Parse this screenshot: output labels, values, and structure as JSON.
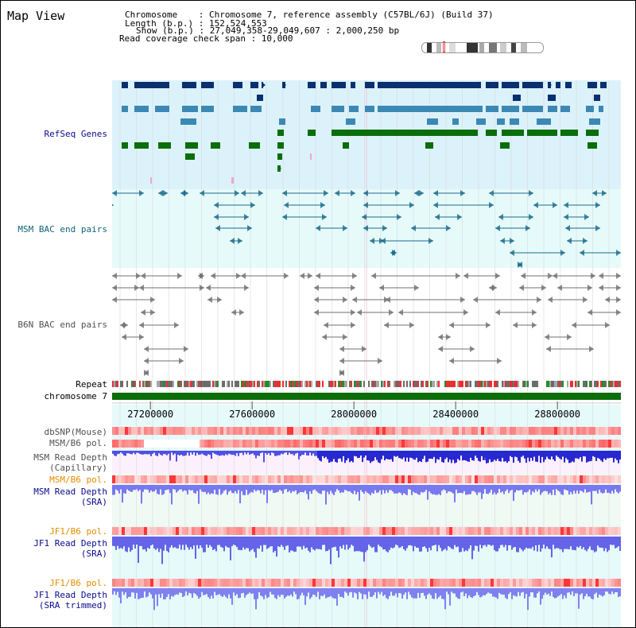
{
  "title": "Map View",
  "info": {
    "chromosome": "Chromosome    : Chromosome 7, reference assembly (C57BL/6J) (Build 37)",
    "length": "Length (b.p.) : 152,524,553",
    "show": "Show (b.p.) : 27,049,358-29,049,607 : 2,000,250 bp",
    "coverage": "Read coverage check span : 10,000"
  },
  "tracks": {
    "refseq": "RefSeq Genes",
    "msm_bac": "MSM BAC end pairs",
    "b6n_bac": "B6N BAC end pairs",
    "repeat": "Repeat",
    "chromosome": "chromosome 7",
    "dbsnp": "dbSNP(Mouse)",
    "msm_b6_pol_1": "MSM/B6 pol.",
    "msm_depth_cap_1": "MSM Read Depth",
    "msm_depth_cap_2": "(Capillary)",
    "msm_b6_pol_2": "MSM/B6 pol.",
    "msm_depth_sra_1": "MSM Read Depth",
    "msm_depth_sra_2": "(SRA)",
    "jf1_b6_pol_1": "JF1/B6 pol.",
    "jf1_depth_sra_1": "JF1 Read Depth",
    "jf1_depth_sra_2": "(SRA)",
    "jf1_b6_pol_2": "JF1/B6 pol.",
    "jf1_depth_trim_1": "JF1 Read Depth",
    "jf1_depth_trim_2": "(SRA trimmed)"
  },
  "axis": {
    "ticks": [
      "27200000",
      "27600000",
      "28000000",
      "28400000",
      "28800000"
    ],
    "range": [
      27049358,
      29049607
    ]
  },
  "colors": {
    "refseq_bg": "#dcf2fa",
    "bac_bg": "#e6fafa",
    "refseq_dark": "#0a3070",
    "refseq_mid": "#3c88b4",
    "refseq_green": "#0a6e0a",
    "msm_bac": "#1a6c8c",
    "b6n_bac": "#707070",
    "chromosome": "#0a6e0a",
    "label_navy": "#0a0a8c",
    "label_teal": "#106478",
    "label_orange": "#e68c00",
    "label_gray": "#505050"
  }
}
